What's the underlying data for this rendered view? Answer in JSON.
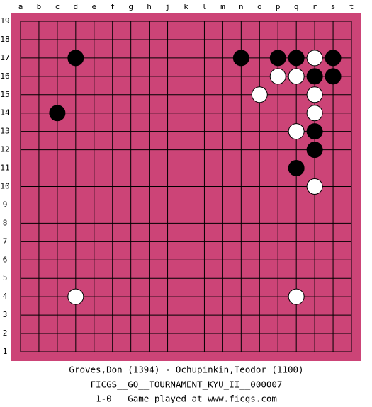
{
  "board": {
    "columns": [
      "a",
      "b",
      "c",
      "d",
      "e",
      "f",
      "g",
      "h",
      "j",
      "k",
      "l",
      "m",
      "n",
      "o",
      "p",
      "q",
      "r",
      "s",
      "t"
    ],
    "rows": [
      19,
      18,
      17,
      16,
      15,
      14,
      13,
      12,
      11,
      10,
      9,
      8,
      7,
      6,
      5,
      4,
      3,
      2,
      1
    ],
    "stones": [
      {
        "color": "black",
        "col": "d",
        "row": 17
      },
      {
        "color": "black",
        "col": "n",
        "row": 17
      },
      {
        "color": "black",
        "col": "p",
        "row": 17
      },
      {
        "color": "black",
        "col": "q",
        "row": 17
      },
      {
        "color": "white",
        "col": "r",
        "row": 17
      },
      {
        "color": "black",
        "col": "s",
        "row": 17
      },
      {
        "color": "white",
        "col": "p",
        "row": 16
      },
      {
        "color": "white",
        "col": "q",
        "row": 16
      },
      {
        "color": "black",
        "col": "r",
        "row": 16
      },
      {
        "color": "black",
        "col": "s",
        "row": 16
      },
      {
        "color": "white",
        "col": "o",
        "row": 15
      },
      {
        "color": "white",
        "col": "r",
        "row": 15
      },
      {
        "color": "black",
        "col": "c",
        "row": 14
      },
      {
        "color": "white",
        "col": "r",
        "row": 14
      },
      {
        "color": "white",
        "col": "q",
        "row": 13
      },
      {
        "color": "black",
        "col": "r",
        "row": 13
      },
      {
        "color": "black",
        "col": "r",
        "row": 12
      },
      {
        "color": "black",
        "col": "q",
        "row": 11
      },
      {
        "color": "white",
        "col": "r",
        "row": 10
      },
      {
        "color": "white",
        "col": "d",
        "row": 4
      },
      {
        "color": "white",
        "col": "q",
        "row": 4
      }
    ]
  },
  "footer": {
    "players": "Groves,Don (1394) - Ochupinkin,Teodor (1100)",
    "tournament": "FICGS__GO__TOURNAMENT_KYU_II__000007",
    "result": "1-0   Game played at www.ficgs.com"
  }
}
